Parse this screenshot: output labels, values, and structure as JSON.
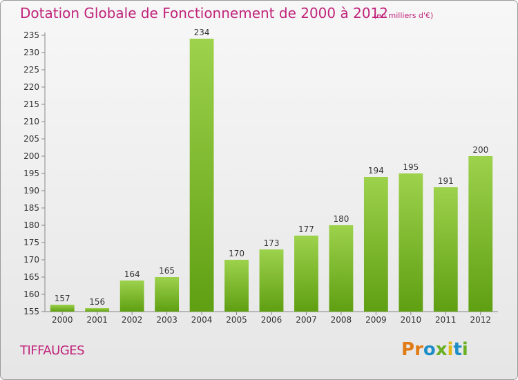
{
  "header": {
    "title": "Dotation Globale de Fonctionnement de 2000 à 2012",
    "subtitle": "(en milliers d'€)"
  },
  "footer": {
    "city": "TIFFAUGES",
    "logo": "Proxiti"
  },
  "colors": {
    "accent": "#c0237a",
    "bar_top": "#9dd24c",
    "bar_bottom": "#5f9f12",
    "logo_letters": [
      "#e07b16",
      "#e07b16",
      "#1f8ec7",
      "#6ab023",
      "#e0b816",
      "#1f8ec7",
      "#6ab023"
    ]
  },
  "chart_data": {
    "type": "bar",
    "title": "Dotation Globale de Fonctionnement de 2000 à 2012",
    "subtitle": "(en milliers d'€)",
    "xlabel": "",
    "ylabel": "",
    "categories": [
      "2000",
      "2001",
      "2002",
      "2003",
      "2004",
      "2005",
      "2006",
      "2007",
      "2008",
      "2009",
      "2010",
      "2011",
      "2012"
    ],
    "values": [
      157,
      156,
      164,
      165,
      234,
      170,
      173,
      177,
      180,
      194,
      195,
      191,
      200
    ],
    "ylim": [
      155,
      235
    ],
    "yticks": [
      155,
      160,
      165,
      170,
      175,
      180,
      185,
      190,
      195,
      200,
      205,
      210,
      215,
      220,
      225,
      230,
      235
    ],
    "grid": false,
    "legend": "none"
  }
}
